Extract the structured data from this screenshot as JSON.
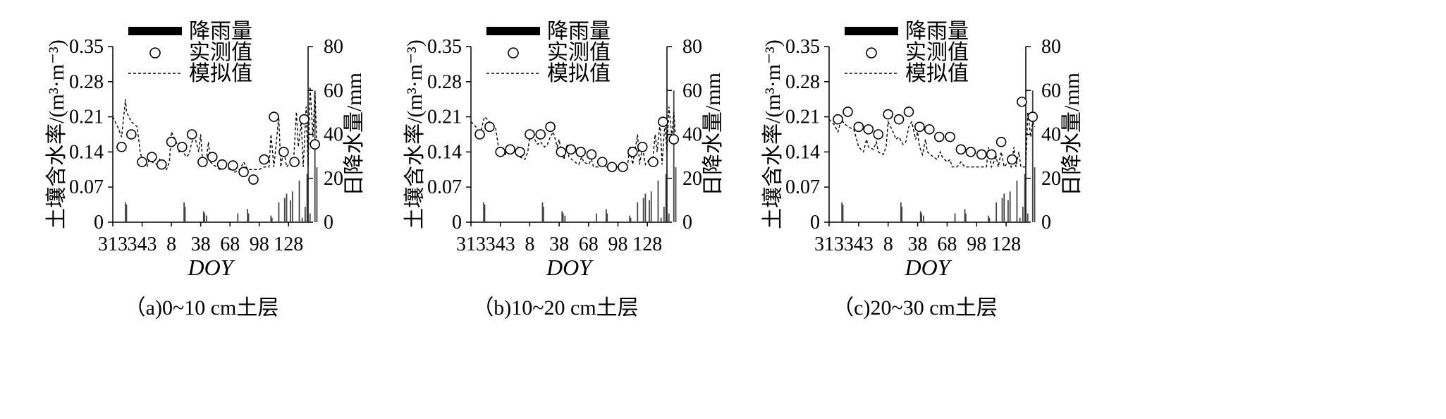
{
  "legend": {
    "rain_label": "降雨量",
    "obs_label": "实测值",
    "sim_label": "模拟值"
  },
  "axes": {
    "left_label": "土壤含水率/(m³·m⁻³)",
    "right_label": "日降水量/mm",
    "x_label": "DOY",
    "left_ticks": [
      "0",
      "0.07",
      "0.14",
      "0.21",
      "0.28",
      "0.35"
    ],
    "right_ticks": [
      "0",
      "20",
      "40",
      "60",
      "80"
    ],
    "x_ticks": [
      "313",
      "343",
      "8",
      "38",
      "68",
      "98",
      "128"
    ]
  },
  "colors": {
    "ink": "#000000",
    "background": "#ffffff"
  },
  "chart_data": [
    {
      "type": "line",
      "caption": "（a)0~10 cm土层",
      "ylim": [
        0,
        0.35
      ],
      "y2lim": [
        0,
        80
      ],
      "xlim": [
        0,
        200
      ],
      "x_tick_positions": [
        0,
        30,
        60,
        90,
        120,
        150,
        180
      ],
      "series": [
        {
          "name": "降雨量",
          "kind": "bar",
          "x": [
            13,
            14,
            73,
            74,
            93,
            94,
            96,
            128,
            138,
            139,
            162,
            163,
            170,
            176,
            178,
            182,
            184,
            191,
            194,
            197,
            199,
            202,
            207,
            209
          ],
          "values": [
            9,
            8,
            9,
            7,
            5,
            4,
            3,
            4,
            6,
            4,
            3,
            2,
            9,
            11,
            13,
            10,
            14,
            19,
            2,
            7,
            22,
            4,
            60,
            25
          ]
        },
        {
          "name": "实测值",
          "kind": "scatter",
          "x": [
            9,
            19,
            30,
            40,
            50,
            60,
            71,
            81,
            92,
            102,
            112,
            123,
            134,
            144,
            155,
            165,
            175,
            186,
            196,
            207
          ],
          "values": [
            0.15,
            0.175,
            0.12,
            0.13,
            0.115,
            0.16,
            0.15,
            0.175,
            0.12,
            0.13,
            0.115,
            0.113,
            0.1,
            0.085,
            0.125,
            0.21,
            0.14,
            0.12,
            0.205,
            0.155
          ]
        },
        {
          "name": "模拟值",
          "kind": "line",
          "x": [
            0,
            5,
            9,
            13,
            14,
            19,
            25,
            28,
            30,
            35,
            38,
            40,
            45,
            48,
            50,
            55,
            58,
            60,
            65,
            68,
            71,
            75,
            78,
            81,
            84,
            88,
            90,
            92,
            95,
            98,
            100,
            103,
            106,
            110,
            113,
            115,
            120,
            123,
            125,
            130,
            134,
            138,
            140,
            145,
            150,
            155,
            160,
            162,
            165,
            170,
            172,
            175,
            178,
            182,
            185,
            188,
            190,
            193,
            195,
            198,
            200,
            202,
            205,
            207,
            209
          ],
          "values": [
            0.21,
            0.19,
            0.17,
            0.245,
            0.22,
            0.2,
            0.19,
            0.14,
            0.125,
            0.11,
            0.13,
            0.12,
            0.115,
            0.125,
            0.11,
            0.105,
            0.12,
            0.18,
            0.16,
            0.14,
            0.145,
            0.13,
            0.135,
            0.16,
            0.17,
            0.14,
            0.175,
            0.12,
            0.11,
            0.16,
            0.12,
            0.115,
            0.11,
            0.105,
            0.12,
            0.11,
            0.105,
            0.12,
            0.1,
            0.105,
            0.12,
            0.105,
            0.105,
            0.105,
            0.105,
            0.11,
            0.11,
            0.175,
            0.11,
            0.21,
            0.11,
            0.145,
            0.11,
            0.12,
            0.115,
            0.22,
            0.15,
            0.2,
            0.11,
            0.23,
            0.11,
            0.27,
            0.17,
            0.26,
            0.15
          ]
        }
      ]
    },
    {
      "type": "line",
      "caption": "（b)10~20 cm土层",
      "ylim": [
        0,
        0.35
      ],
      "y2lim": [
        0,
        80
      ],
      "xlim": [
        0,
        200
      ],
      "x_tick_positions": [
        0,
        30,
        60,
        90,
        120,
        150,
        180
      ],
      "series": [
        {
          "name": "降雨量",
          "kind": "bar",
          "x": [
            13,
            14,
            73,
            74,
            93,
            94,
            96,
            128,
            138,
            139,
            162,
            163,
            170,
            176,
            178,
            182,
            184,
            191,
            194,
            197,
            199,
            202,
            207,
            209
          ],
          "values": [
            9,
            8,
            9,
            7,
            5,
            4,
            3,
            4,
            6,
            4,
            3,
            2,
            9,
            11,
            13,
            10,
            14,
            19,
            2,
            7,
            22,
            4,
            60,
            25
          ]
        },
        {
          "name": "实测值",
          "kind": "scatter",
          "x": [
            9,
            19,
            30,
            40,
            50,
            60,
            71,
            81,
            92,
            102,
            112,
            123,
            134,
            144,
            155,
            165,
            175,
            186,
            196,
            207
          ],
          "values": [
            0.175,
            0.19,
            0.14,
            0.145,
            0.14,
            0.175,
            0.175,
            0.19,
            0.14,
            0.145,
            0.14,
            0.135,
            0.12,
            0.11,
            0.11,
            0.14,
            0.15,
            0.12,
            0.2,
            0.165
          ]
        },
        {
          "name": "模拟值",
          "kind": "line",
          "x": [
            0,
            5,
            9,
            13,
            14,
            19,
            25,
            28,
            30,
            35,
            38,
            40,
            45,
            48,
            50,
            55,
            58,
            60,
            65,
            68,
            71,
            75,
            78,
            81,
            84,
            88,
            90,
            92,
            95,
            98,
            100,
            103,
            106,
            110,
            113,
            115,
            120,
            123,
            125,
            130,
            134,
            138,
            140,
            145,
            150,
            155,
            160,
            162,
            165,
            170,
            172,
            175,
            178,
            182,
            185,
            188,
            190,
            193,
            195,
            198,
            200,
            202,
            205,
            207,
            209
          ],
          "values": [
            0.2,
            0.19,
            0.17,
            0.205,
            0.21,
            0.2,
            0.19,
            0.15,
            0.14,
            0.135,
            0.15,
            0.14,
            0.14,
            0.15,
            0.13,
            0.125,
            0.14,
            0.17,
            0.165,
            0.155,
            0.16,
            0.15,
            0.155,
            0.17,
            0.18,
            0.15,
            0.165,
            0.14,
            0.125,
            0.155,
            0.13,
            0.125,
            0.12,
            0.115,
            0.13,
            0.12,
            0.115,
            0.125,
            0.11,
            0.11,
            0.12,
            0.11,
            0.11,
            0.11,
            0.11,
            0.115,
            0.115,
            0.15,
            0.115,
            0.175,
            0.115,
            0.15,
            0.115,
            0.125,
            0.115,
            0.175,
            0.14,
            0.2,
            0.115,
            0.2,
            0.14,
            0.23,
            0.17,
            0.22,
            0.16
          ]
        }
      ]
    },
    {
      "type": "line",
      "caption": "（c)20~30 cm土层",
      "ylim": [
        0,
        0.35
      ],
      "y2lim": [
        0,
        80
      ],
      "xlim": [
        0,
        200
      ],
      "x_tick_positions": [
        0,
        30,
        60,
        90,
        120,
        150,
        180
      ],
      "series": [
        {
          "name": "降雨量",
          "kind": "bar",
          "x": [
            13,
            14,
            73,
            74,
            93,
            94,
            96,
            128,
            138,
            139,
            162,
            163,
            170,
            176,
            178,
            182,
            184,
            191,
            194,
            197,
            199,
            202,
            207,
            209
          ],
          "values": [
            9,
            8,
            9,
            7,
            5,
            4,
            3,
            4,
            6,
            4,
            3,
            2,
            9,
            11,
            13,
            10,
            14,
            19,
            2,
            7,
            22,
            4,
            60,
            25
          ]
        },
        {
          "name": "实测值",
          "kind": "scatter",
          "x": [
            9,
            19,
            30,
            40,
            50,
            60,
            71,
            81,
            92,
            102,
            112,
            123,
            134,
            144,
            155,
            165,
            175,
            186,
            196,
            207
          ],
          "values": [
            0.205,
            0.22,
            0.19,
            0.185,
            0.175,
            0.215,
            0.205,
            0.22,
            0.19,
            0.185,
            0.17,
            0.17,
            0.145,
            0.14,
            0.135,
            0.135,
            0.16,
            0.125,
            0.24,
            0.21
          ]
        },
        {
          "name": "模拟值",
          "kind": "line",
          "x": [
            0,
            5,
            9,
            13,
            14,
            19,
            25,
            28,
            30,
            35,
            38,
            40,
            45,
            48,
            50,
            55,
            58,
            60,
            65,
            68,
            71,
            75,
            78,
            81,
            84,
            88,
            90,
            92,
            95,
            98,
            100,
            103,
            106,
            110,
            113,
            115,
            120,
            123,
            125,
            130,
            134,
            138,
            140,
            145,
            150,
            155,
            160,
            162,
            165,
            170,
            172,
            175,
            178,
            182,
            185,
            188,
            190,
            193,
            195,
            198,
            200,
            202,
            205,
            207,
            209
          ],
          "values": [
            0.205,
            0.195,
            0.18,
            0.21,
            0.2,
            0.19,
            0.185,
            0.165,
            0.15,
            0.14,
            0.165,
            0.15,
            0.145,
            0.16,
            0.14,
            0.135,
            0.15,
            0.2,
            0.18,
            0.165,
            0.17,
            0.155,
            0.16,
            0.19,
            0.2,
            0.165,
            0.18,
            0.15,
            0.135,
            0.165,
            0.14,
            0.135,
            0.13,
            0.125,
            0.14,
            0.13,
            0.12,
            0.125,
            0.11,
            0.11,
            0.12,
            0.11,
            0.11,
            0.11,
            0.11,
            0.11,
            0.11,
            0.15,
            0.11,
            0.13,
            0.11,
            0.14,
            0.11,
            0.12,
            0.11,
            0.15,
            0.11,
            0.14,
            0.11,
            0.11,
            0.11,
            0.22,
            0.17,
            0.2,
            0.19
          ]
        }
      ]
    }
  ]
}
